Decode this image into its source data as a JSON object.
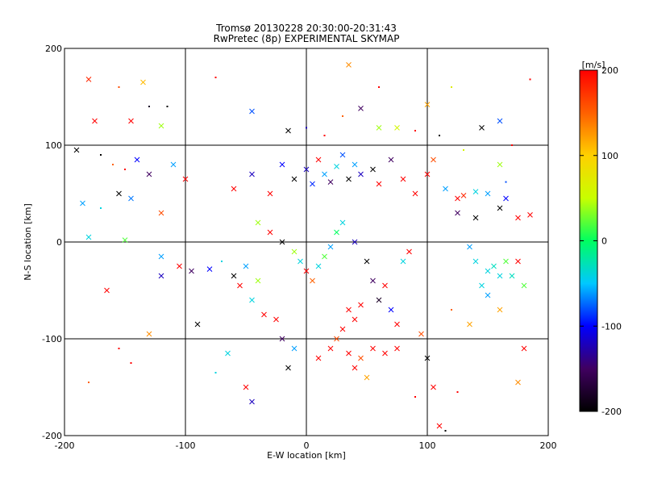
{
  "chart_data": {
    "type": "scatter",
    "title_line1": "Tromsø 20130228 20:30:00-20:31:43",
    "title_line2": "RwPretec (8p) EXPERIMENTAL SKYMAP",
    "xlabel": "E-W location [km]",
    "ylabel": "N-S location [km]",
    "xlim": [
      -200,
      200
    ],
    "ylim": [
      -200,
      200
    ],
    "xticks": [
      "-200",
      "-100",
      "0",
      "100",
      "200"
    ],
    "yticks": [
      "-200",
      "-100",
      "0",
      "100",
      "200"
    ],
    "grid": true,
    "markers": [
      "dot",
      "x"
    ],
    "colorbar": {
      "label": "[m/s]",
      "range": [
        -200,
        200
      ],
      "ticks": [
        "200",
        "100",
        "0",
        "-100",
        "-200"
      ],
      "colormap": [
        "#000000",
        "#400060",
        "#0000ff",
        "#00c8ff",
        "#00ff60",
        "#c8ff00",
        "#ffd000",
        "#ff6000",
        "#ff0000"
      ]
    },
    "points": [
      {
        "x": -180,
        "y": 168,
        "v": 180,
        "m": "x"
      },
      {
        "x": -175,
        "y": 125,
        "v": 200,
        "m": "x"
      },
      {
        "x": -155,
        "y": 160,
        "v": 160,
        "m": "dot"
      },
      {
        "x": -145,
        "y": 125,
        "v": 200,
        "m": "x"
      },
      {
        "x": -135,
        "y": 165,
        "v": 110,
        "m": "x"
      },
      {
        "x": -130,
        "y": 140,
        "v": -180,
        "m": "dot"
      },
      {
        "x": -120,
        "y": 120,
        "v": 40,
        "m": "x"
      },
      {
        "x": -115,
        "y": 140,
        "v": -200,
        "m": "dot"
      },
      {
        "x": -190,
        "y": 95,
        "v": -200,
        "m": "x"
      },
      {
        "x": -170,
        "y": 90,
        "v": -200,
        "m": "dot"
      },
      {
        "x": -160,
        "y": 80,
        "v": 150,
        "m": "dot"
      },
      {
        "x": -150,
        "y": 75,
        "v": 200,
        "m": "dot"
      },
      {
        "x": -140,
        "y": 85,
        "v": -100,
        "m": "x"
      },
      {
        "x": -130,
        "y": 70,
        "v": -150,
        "m": "x"
      },
      {
        "x": -110,
        "y": 80,
        "v": -60,
        "m": "x"
      },
      {
        "x": -100,
        "y": 65,
        "v": 200,
        "m": "x"
      },
      {
        "x": -185,
        "y": 40,
        "v": -60,
        "m": "x"
      },
      {
        "x": -170,
        "y": 35,
        "v": -40,
        "m": "dot"
      },
      {
        "x": -155,
        "y": 50,
        "v": -200,
        "m": "x"
      },
      {
        "x": -145,
        "y": 45,
        "v": -70,
        "m": "x"
      },
      {
        "x": -120,
        "y": 30,
        "v": 160,
        "m": "x"
      },
      {
        "x": -180,
        "y": 5,
        "v": -40,
        "m": "x"
      },
      {
        "x": -150,
        "y": 2,
        "v": 20,
        "m": "x"
      },
      {
        "x": -120,
        "y": -15,
        "v": -60,
        "m": "x"
      },
      {
        "x": -105,
        "y": -25,
        "v": 200,
        "m": "x"
      },
      {
        "x": -95,
        "y": -30,
        "v": -150,
        "m": "x"
      },
      {
        "x": -80,
        "y": -28,
        "v": -100,
        "m": "x"
      },
      {
        "x": -70,
        "y": -20,
        "v": -40,
        "m": "dot"
      },
      {
        "x": -165,
        "y": -50,
        "v": 200,
        "m": "x"
      },
      {
        "x": -130,
        "y": -95,
        "v": 130,
        "m": "x"
      },
      {
        "x": -90,
        "y": -85,
        "v": -200,
        "m": "x"
      },
      {
        "x": -65,
        "y": -115,
        "v": -40,
        "m": "x"
      },
      {
        "x": -50,
        "y": -150,
        "v": 200,
        "m": "x"
      },
      {
        "x": -45,
        "y": -165,
        "v": -120,
        "m": "x"
      },
      {
        "x": -180,
        "y": -145,
        "v": 150,
        "m": "dot"
      },
      {
        "x": -45,
        "y": 135,
        "v": -80,
        "m": "x"
      },
      {
        "x": -15,
        "y": 115,
        "v": -200,
        "m": "x"
      },
      {
        "x": 0,
        "y": 118,
        "v": -120,
        "m": "dot"
      },
      {
        "x": 35,
        "y": 183,
        "v": 130,
        "m": "x"
      },
      {
        "x": 45,
        "y": 138,
        "v": -150,
        "m": "x"
      },
      {
        "x": 60,
        "y": 118,
        "v": 40,
        "m": "x"
      },
      {
        "x": 75,
        "y": 118,
        "v": 60,
        "m": "x"
      },
      {
        "x": 100,
        "y": 142,
        "v": 120,
        "m": "x"
      },
      {
        "x": 120,
        "y": 160,
        "v": 70,
        "m": "dot"
      },
      {
        "x": 145,
        "y": 118,
        "v": -200,
        "m": "x"
      },
      {
        "x": 160,
        "y": 125,
        "v": -80,
        "m": "x"
      },
      {
        "x": 185,
        "y": 168,
        "v": 200,
        "m": "dot"
      },
      {
        "x": -60,
        "y": 55,
        "v": 200,
        "m": "x"
      },
      {
        "x": -45,
        "y": 70,
        "v": -120,
        "m": "x"
      },
      {
        "x": -30,
        "y": 50,
        "v": 200,
        "m": "x"
      },
      {
        "x": -20,
        "y": 80,
        "v": -100,
        "m": "x"
      },
      {
        "x": -10,
        "y": 65,
        "v": -200,
        "m": "x"
      },
      {
        "x": 0,
        "y": 75,
        "v": -120,
        "m": "x"
      },
      {
        "x": 5,
        "y": 60,
        "v": -90,
        "m": "x"
      },
      {
        "x": 10,
        "y": 85,
        "v": 200,
        "m": "x"
      },
      {
        "x": 15,
        "y": 70,
        "v": -60,
        "m": "x"
      },
      {
        "x": 20,
        "y": 62,
        "v": -150,
        "m": "x"
      },
      {
        "x": 25,
        "y": 78,
        "v": -40,
        "m": "x"
      },
      {
        "x": 30,
        "y": 90,
        "v": -80,
        "m": "x"
      },
      {
        "x": 35,
        "y": 65,
        "v": -200,
        "m": "x"
      },
      {
        "x": 40,
        "y": 80,
        "v": -60,
        "m": "x"
      },
      {
        "x": 45,
        "y": 70,
        "v": -120,
        "m": "x"
      },
      {
        "x": 55,
        "y": 75,
        "v": -200,
        "m": "x"
      },
      {
        "x": 60,
        "y": 60,
        "v": 200,
        "m": "x"
      },
      {
        "x": 70,
        "y": 85,
        "v": -150,
        "m": "x"
      },
      {
        "x": 80,
        "y": 65,
        "v": 200,
        "m": "x"
      },
      {
        "x": 90,
        "y": 50,
        "v": 200,
        "m": "x"
      },
      {
        "x": 100,
        "y": 70,
        "v": 200,
        "m": "x"
      },
      {
        "x": 105,
        "y": 85,
        "v": 160,
        "m": "x"
      },
      {
        "x": 115,
        "y": 55,
        "v": -60,
        "m": "x"
      },
      {
        "x": 125,
        "y": 45,
        "v": 200,
        "m": "x"
      },
      {
        "x": 130,
        "y": 48,
        "v": 180,
        "m": "x"
      },
      {
        "x": 140,
        "y": 52,
        "v": -40,
        "m": "x"
      },
      {
        "x": 150,
        "y": 50,
        "v": -60,
        "m": "x"
      },
      {
        "x": 165,
        "y": 45,
        "v": -100,
        "m": "x"
      },
      {
        "x": 175,
        "y": 25,
        "v": 200,
        "m": "x"
      },
      {
        "x": 185,
        "y": 28,
        "v": 200,
        "m": "x"
      },
      {
        "x": 140,
        "y": 25,
        "v": -200,
        "m": "x"
      },
      {
        "x": 125,
        "y": 30,
        "v": -150,
        "m": "x"
      },
      {
        "x": 160,
        "y": 35,
        "v": -200,
        "m": "x"
      },
      {
        "x": 165,
        "y": 62,
        "v": -80,
        "m": "dot"
      },
      {
        "x": 160,
        "y": 80,
        "v": 40,
        "m": "x"
      },
      {
        "x": 170,
        "y": 100,
        "v": 200,
        "m": "dot"
      },
      {
        "x": -40,
        "y": 20,
        "v": 40,
        "m": "x"
      },
      {
        "x": -30,
        "y": 10,
        "v": 200,
        "m": "x"
      },
      {
        "x": -20,
        "y": 0,
        "v": -200,
        "m": "x"
      },
      {
        "x": -10,
        "y": -10,
        "v": 40,
        "m": "x"
      },
      {
        "x": -5,
        "y": -20,
        "v": -40,
        "m": "x"
      },
      {
        "x": 0,
        "y": -30,
        "v": 200,
        "m": "x"
      },
      {
        "x": 5,
        "y": -40,
        "v": 150,
        "m": "x"
      },
      {
        "x": 10,
        "y": -25,
        "v": -40,
        "m": "x"
      },
      {
        "x": 15,
        "y": -15,
        "v": 20,
        "m": "x"
      },
      {
        "x": 20,
        "y": -5,
        "v": -60,
        "m": "x"
      },
      {
        "x": 25,
        "y": 10,
        "v": 0,
        "m": "x"
      },
      {
        "x": 30,
        "y": 20,
        "v": -40,
        "m": "x"
      },
      {
        "x": 40,
        "y": 0,
        "v": -120,
        "m": "x"
      },
      {
        "x": 50,
        "y": -20,
        "v": -200,
        "m": "x"
      },
      {
        "x": 55,
        "y": -40,
        "v": -150,
        "m": "x"
      },
      {
        "x": 60,
        "y": -60,
        "v": -180,
        "m": "x"
      },
      {
        "x": 65,
        "y": -45,
        "v": 200,
        "m": "x"
      },
      {
        "x": 70,
        "y": -70,
        "v": -100,
        "m": "x"
      },
      {
        "x": 75,
        "y": -85,
        "v": 200,
        "m": "x"
      },
      {
        "x": 80,
        "y": -20,
        "v": -40,
        "m": "x"
      },
      {
        "x": 85,
        "y": -10,
        "v": 200,
        "m": "x"
      },
      {
        "x": 35,
        "y": -70,
        "v": 200,
        "m": "x"
      },
      {
        "x": 40,
        "y": -80,
        "v": 200,
        "m": "x"
      },
      {
        "x": 45,
        "y": -65,
        "v": 200,
        "m": "x"
      },
      {
        "x": 30,
        "y": -90,
        "v": 200,
        "m": "x"
      },
      {
        "x": 25,
        "y": -100,
        "v": 160,
        "m": "x"
      },
      {
        "x": 20,
        "y": -110,
        "v": 200,
        "m": "x"
      },
      {
        "x": 35,
        "y": -115,
        "v": 200,
        "m": "x"
      },
      {
        "x": 45,
        "y": -120,
        "v": 160,
        "m": "x"
      },
      {
        "x": 55,
        "y": -110,
        "v": 200,
        "m": "x"
      },
      {
        "x": 65,
        "y": -115,
        "v": 200,
        "m": "x"
      },
      {
        "x": 75,
        "y": -110,
        "v": 200,
        "m": "x"
      },
      {
        "x": 40,
        "y": -130,
        "v": 200,
        "m": "x"
      },
      {
        "x": 50,
        "y": -140,
        "v": 120,
        "m": "x"
      },
      {
        "x": 10,
        "y": -120,
        "v": 200,
        "m": "x"
      },
      {
        "x": -10,
        "y": -110,
        "v": -60,
        "m": "x"
      },
      {
        "x": -20,
        "y": -100,
        "v": -150,
        "m": "x"
      },
      {
        "x": -15,
        "y": -130,
        "v": -200,
        "m": "x"
      },
      {
        "x": -25,
        "y": -80,
        "v": 200,
        "m": "x"
      },
      {
        "x": -35,
        "y": -75,
        "v": 200,
        "m": "x"
      },
      {
        "x": -45,
        "y": -60,
        "v": -40,
        "m": "x"
      },
      {
        "x": -55,
        "y": -45,
        "v": 200,
        "m": "x"
      },
      {
        "x": -60,
        "y": -35,
        "v": -200,
        "m": "x"
      },
      {
        "x": -50,
        "y": -25,
        "v": -60,
        "m": "x"
      },
      {
        "x": -40,
        "y": -40,
        "v": 40,
        "m": "x"
      },
      {
        "x": 100,
        "y": -120,
        "v": -200,
        "m": "x"
      },
      {
        "x": 95,
        "y": -95,
        "v": 160,
        "m": "x"
      },
      {
        "x": 105,
        "y": -150,
        "v": 200,
        "m": "x"
      },
      {
        "x": 110,
        "y": -190,
        "v": 200,
        "m": "x"
      },
      {
        "x": 115,
        "y": -195,
        "v": -200,
        "m": "dot"
      },
      {
        "x": 125,
        "y": -155,
        "v": 200,
        "m": "dot"
      },
      {
        "x": 135,
        "y": -85,
        "v": 120,
        "m": "x"
      },
      {
        "x": 160,
        "y": -70,
        "v": 120,
        "m": "x"
      },
      {
        "x": 165,
        "y": -20,
        "v": 20,
        "m": "x"
      },
      {
        "x": 180,
        "y": -110,
        "v": 200,
        "m": "x"
      },
      {
        "x": 175,
        "y": -145,
        "v": 130,
        "m": "x"
      },
      {
        "x": 145,
        "y": -45,
        "v": -40,
        "m": "x"
      },
      {
        "x": 150,
        "y": -30,
        "v": -40,
        "m": "x"
      },
      {
        "x": 155,
        "y": -25,
        "v": -30,
        "m": "x"
      },
      {
        "x": 160,
        "y": -35,
        "v": -40,
        "m": "x"
      },
      {
        "x": 170,
        "y": -35,
        "v": -30,
        "m": "x"
      },
      {
        "x": 175,
        "y": -20,
        "v": 200,
        "m": "x"
      },
      {
        "x": 180,
        "y": -45,
        "v": 20,
        "m": "x"
      },
      {
        "x": 150,
        "y": -55,
        "v": -60,
        "m": "x"
      },
      {
        "x": 140,
        "y": -20,
        "v": -40,
        "m": "x"
      },
      {
        "x": 135,
        "y": -5,
        "v": -60,
        "m": "x"
      },
      {
        "x": -120,
        "y": -35,
        "v": -120,
        "m": "x"
      },
      {
        "x": -145,
        "y": -125,
        "v": 200,
        "m": "dot"
      },
      {
        "x": -155,
        "y": -110,
        "v": 200,
        "m": "dot"
      },
      {
        "x": -75,
        "y": -135,
        "v": -40,
        "m": "dot"
      },
      {
        "x": 120,
        "y": -70,
        "v": 150,
        "m": "dot"
      },
      {
        "x": 90,
        "y": -160,
        "v": 200,
        "m": "dot"
      },
      {
        "x": 60,
        "y": 160,
        "v": 200,
        "m": "dot"
      },
      {
        "x": -75,
        "y": 170,
        "v": 200,
        "m": "dot"
      },
      {
        "x": 15,
        "y": 110,
        "v": 200,
        "m": "dot"
      },
      {
        "x": 30,
        "y": 130,
        "v": 150,
        "m": "dot"
      },
      {
        "x": 90,
        "y": 115,
        "v": 200,
        "m": "dot"
      },
      {
        "x": 110,
        "y": 110,
        "v": -200,
        "m": "dot"
      },
      {
        "x": 130,
        "y": 95,
        "v": 60,
        "m": "dot"
      }
    ]
  }
}
